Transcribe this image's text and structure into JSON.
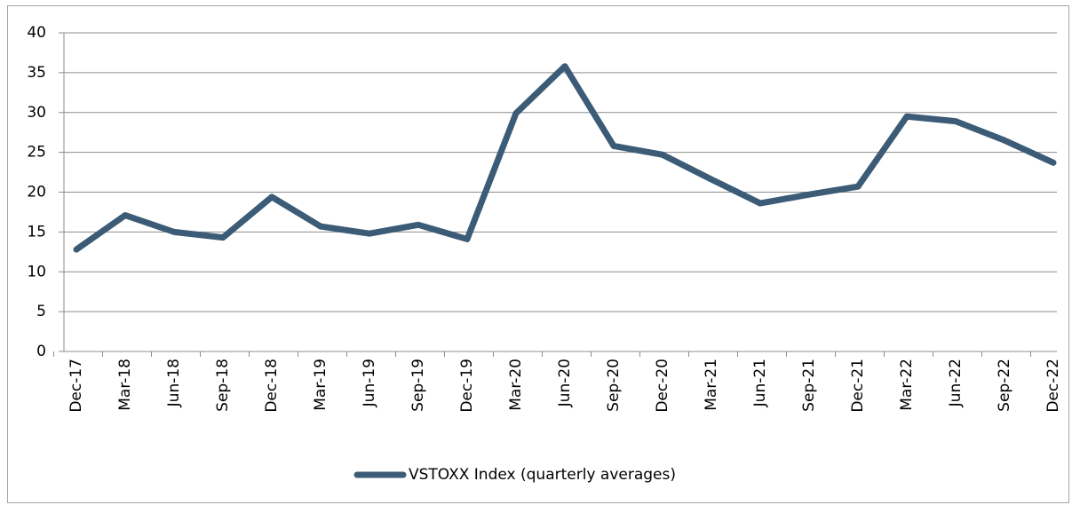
{
  "chart_data": {
    "type": "line",
    "categories": [
      "Dec-17",
      "Mar-18",
      "Jun-18",
      "Sep-18",
      "Dec-18",
      "Mar-19",
      "Jun-19",
      "Sep-19",
      "Dec-19",
      "Mar-20",
      "Jun-20",
      "Sep-20",
      "Dec-20",
      "Mar-21",
      "Jun-21",
      "Sep-21",
      "Dec-21",
      "Mar-22",
      "Jun-22",
      "Sep-22",
      "Dec-22"
    ],
    "series": [
      {
        "name": "VSTOXX Index (quarterly averages)",
        "color": "#3b5b76",
        "values": [
          12.8,
          17.1,
          15.0,
          14.3,
          19.4,
          15.7,
          14.8,
          15.9,
          14.1,
          29.9,
          35.8,
          25.8,
          24.7,
          21.6,
          18.6,
          19.7,
          20.7,
          29.5,
          28.9,
          26.5,
          23.7
        ]
      }
    ],
    "ylim": [
      0,
      40
    ],
    "yticks": [
      0,
      5,
      10,
      15,
      20,
      25,
      30,
      35,
      40
    ],
    "grid": true,
    "legend": "bottom"
  }
}
